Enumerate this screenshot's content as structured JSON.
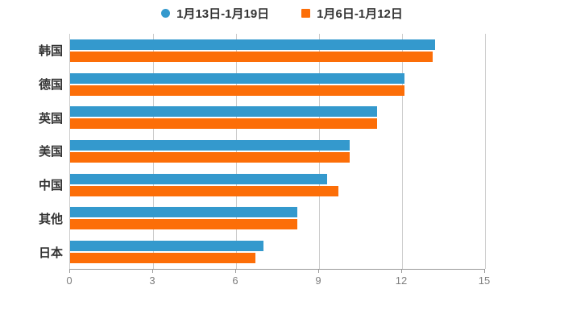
{
  "legend": {
    "items": [
      {
        "label": "1月13日-1月19日",
        "color": "#3499cd",
        "marker": "circle"
      },
      {
        "label": "1月6日-1月12日",
        "color": "#fc6e08",
        "marker": "square"
      }
    ]
  },
  "chart_data": {
    "type": "bar",
    "orientation": "horizontal",
    "title": "",
    "xlabel": "",
    "ylabel": "",
    "categories": [
      "韩国",
      "德国",
      "英国",
      "美国",
      "中国",
      "其他",
      "日本"
    ],
    "series": [
      {
        "name": "1月13日-1月19日",
        "color": "#3499cd",
        "values": [
          13.2,
          12.1,
          11.1,
          10.1,
          9.3,
          8.2,
          7.0
        ]
      },
      {
        "name": "1月6日-1月12日",
        "color": "#fc6e08",
        "values": [
          13.1,
          12.1,
          11.1,
          10.1,
          9.7,
          8.2,
          6.7
        ]
      }
    ],
    "xlim": [
      0,
      15
    ],
    "x_ticks": [
      0,
      3,
      6,
      9,
      12,
      15
    ],
    "grid": true,
    "legend_position": "top",
    "colors": {
      "gridline": "#cccccc",
      "axis_line": "#999999",
      "tick_label": "#7f7f7f",
      "category_label": "#333333",
      "legend_text": "#333333",
      "background": "#ffffff"
    }
  }
}
